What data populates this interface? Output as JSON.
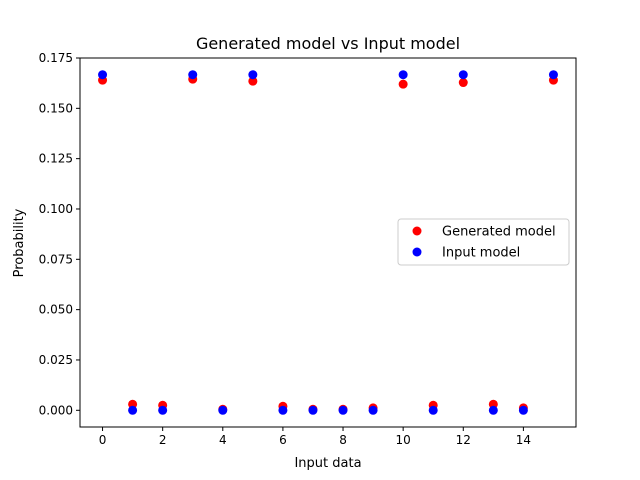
{
  "chart_data": {
    "type": "scatter",
    "title": "Generated model vs Input model",
    "xlabel": "Input data",
    "ylabel": "Probability",
    "xlim": [
      -0.75,
      15.75
    ],
    "ylim": [
      -0.0083,
      0.175
    ],
    "xticks": [
      0,
      2,
      4,
      6,
      8,
      10,
      12,
      14
    ],
    "xtick_labels": [
      "0",
      "2",
      "4",
      "6",
      "8",
      "10",
      "12",
      "14"
    ],
    "yticks": [
      0.0,
      0.025,
      0.05,
      0.075,
      0.1,
      0.125,
      0.15,
      0.175
    ],
    "ytick_labels": [
      "0.000",
      "0.025",
      "0.050",
      "0.075",
      "0.100",
      "0.125",
      "0.150",
      "0.175"
    ],
    "grid": false,
    "legend_position": "center-right",
    "series": [
      {
        "name": "Generated model",
        "color": "#ff0000",
        "x": [
          0,
          1,
          2,
          3,
          4,
          5,
          6,
          7,
          8,
          9,
          10,
          11,
          12,
          13,
          14,
          15
        ],
        "y": [
          0.164,
          0.003,
          0.0025,
          0.1645,
          0.0005,
          0.1635,
          0.002,
          0.0005,
          0.0005,
          0.0012,
          0.162,
          0.0025,
          0.1628,
          0.003,
          0.0012,
          0.164
        ]
      },
      {
        "name": "Input model",
        "color": "#0000ff",
        "x": [
          0,
          1,
          2,
          3,
          4,
          5,
          6,
          7,
          8,
          9,
          10,
          11,
          12,
          13,
          14,
          15
        ],
        "y": [
          0.1667,
          0.0,
          0.0,
          0.1667,
          0.0,
          0.1667,
          0.0,
          0.0,
          0.0,
          0.0,
          0.1667,
          0.0,
          0.1667,
          0.0,
          0.0,
          0.1667
        ]
      }
    ]
  }
}
